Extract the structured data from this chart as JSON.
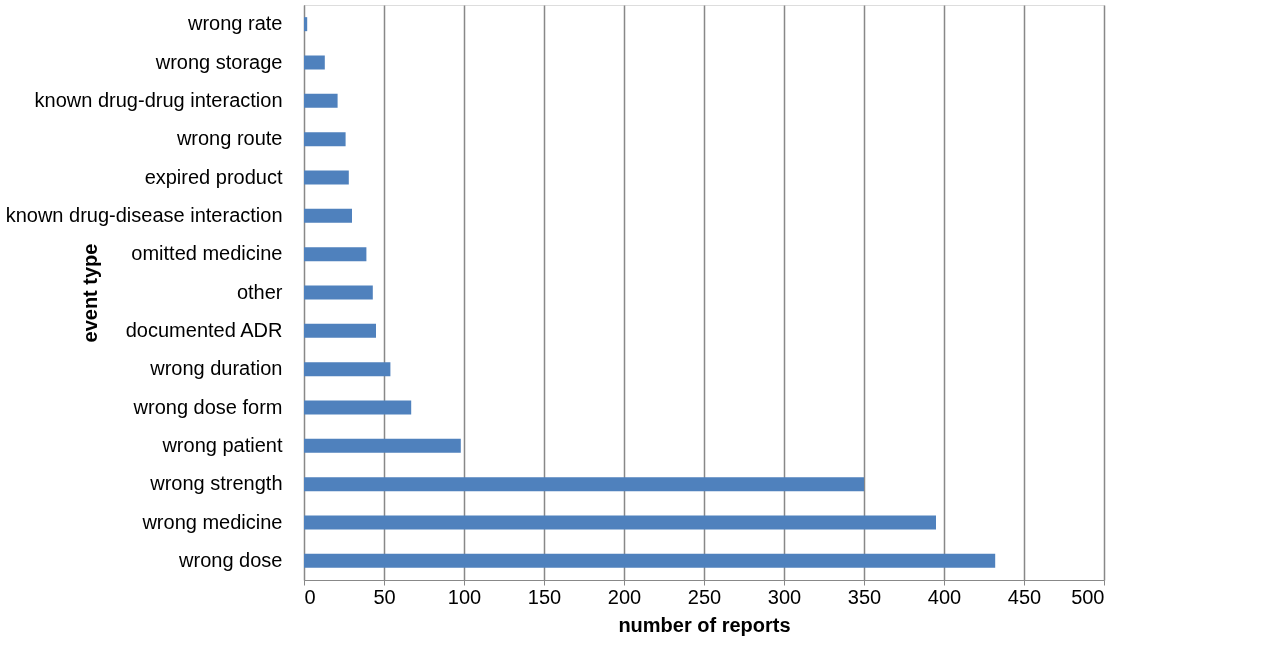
{
  "chart_data": {
    "type": "bar",
    "orientation": "horizontal",
    "xlabel": "number of reports",
    "ylabel": "event type",
    "categories": [
      "wrong rate",
      "wrong storage",
      "known drug-drug interaction",
      "wrong route",
      "expired product",
      "known drug-disease interaction",
      "omitted medicine",
      "other",
      "documented ADR",
      "wrong duration",
      "wrong dose form",
      "wrong patient",
      "wrong strength",
      "wrong medicine",
      "wrong dose"
    ],
    "values": [
      2,
      13,
      21,
      26,
      28,
      30,
      39,
      43,
      45,
      54,
      67,
      98,
      350,
      395,
      432
    ],
    "color": "#4f81bd",
    "xlim": [
      0,
      500
    ],
    "xticks": [
      0,
      50,
      100,
      150,
      200,
      250,
      300,
      350,
      400,
      450,
      500
    ],
    "grid": "x"
  }
}
